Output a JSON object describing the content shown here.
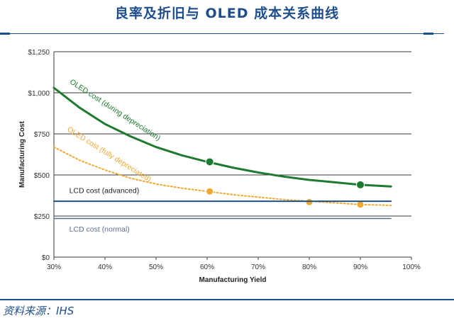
{
  "header": {
    "title": "良率及折旧与 OLED 成本关系曲线"
  },
  "footer": {
    "source": "资料来源：IHS"
  },
  "colors": {
    "oled_depreciation": "#1e7a2e",
    "oled_depreciated": "#f0a830",
    "lcd_advanced": "#1f4e8c",
    "lcd_normal": "#5a6f8c",
    "title": "#1f4e8c"
  },
  "chart_data": {
    "type": "line",
    "title": "",
    "xlabel": "Manufacturing Yield",
    "ylabel": "Manufacturing Cost",
    "xlim": [
      30,
      100
    ],
    "ylim": [
      0,
      1250
    ],
    "x_ticks": [
      30,
      40,
      50,
      60,
      70,
      80,
      90,
      100
    ],
    "x_tick_labels": [
      "30%",
      "40%",
      "50%",
      "60%",
      "70%",
      "80%",
      "90%",
      "100%"
    ],
    "y_ticks": [
      0,
      250,
      500,
      750,
      1000,
      1250
    ],
    "y_tick_labels": [
      "$0",
      "$250",
      "$500",
      "$750",
      "$1,000",
      "$1,250"
    ],
    "grid": true,
    "series": [
      {
        "name": "OLED cost (during depreciation)",
        "style": "solid",
        "x": [
          30,
          35,
          40,
          45,
          50,
          55,
          60,
          65,
          70,
          75,
          80,
          85,
          90,
          96
        ],
        "y": [
          1030,
          910,
          810,
          735,
          670,
          620,
          580,
          545,
          515,
          490,
          470,
          455,
          440,
          430
        ],
        "markers": [
          {
            "x": 60.5,
            "y": 580
          },
          {
            "x": 90,
            "y": 440
          }
        ]
      },
      {
        "name": "OLED cost (fully depreciated)",
        "style": "dotted",
        "x": [
          30,
          35,
          40,
          45,
          50,
          55,
          60,
          65,
          70,
          75,
          80,
          85,
          90,
          96
        ],
        "y": [
          670,
          590,
          530,
          480,
          445,
          420,
          400,
          380,
          365,
          350,
          340,
          330,
          320,
          315
        ],
        "markers": [
          {
            "x": 60.5,
            "y": 400
          },
          {
            "x": 80,
            "y": 335
          },
          {
            "x": 90,
            "y": 320
          }
        ]
      },
      {
        "name": "LCD cost (advanced)",
        "style": "solid",
        "x": [
          30,
          96
        ],
        "y": [
          340,
          340
        ],
        "markers": []
      },
      {
        "name": "LCD cost (normal)",
        "style": "solid",
        "x": [
          30,
          96
        ],
        "y": [
          235,
          235
        ],
        "markers": []
      }
    ]
  }
}
